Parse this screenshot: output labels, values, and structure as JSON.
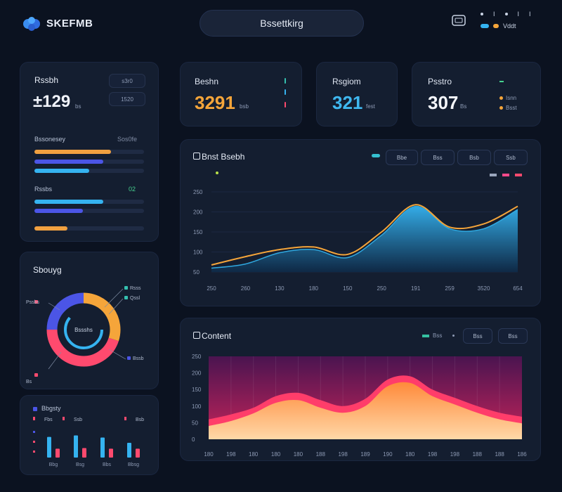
{
  "header": {
    "app_title": "SKEFMB",
    "search_label": "Bssettkirg",
    "top_right": [
      "I",
      "I",
      "I"
    ],
    "toggle_label": "Vddt"
  },
  "side_card_1": {
    "title": "Rssbh",
    "value": "±129",
    "value_unit": "bs",
    "box_1": "s3r0",
    "box_2": "1520",
    "group_1_label": "Bssonesey",
    "group_1_value": "Sos0fe",
    "group_2_label": "Rssbs",
    "group_2_value": "02",
    "bars": [
      {
        "group": 1,
        "fill": 0.7,
        "color": "#f0a040"
      },
      {
        "group": 1,
        "fill": 0.63,
        "color": "#4b55e6"
      },
      {
        "group": 1,
        "fill": 0.5,
        "color": "#35b3f0"
      },
      {
        "group": 2,
        "fill": 0.63,
        "color": "#35b3f0"
      },
      {
        "group": 2,
        "fill": 0.44,
        "color": "#4b55e6"
      },
      {
        "group": 2,
        "fill": 0.3,
        "color": "#f0a040"
      }
    ]
  },
  "stats": [
    {
      "title": "Beshn",
      "value": "3291",
      "sub": "bsb",
      "color": "#f5a53a"
    },
    {
      "title": "Rsgiom",
      "value": "321",
      "sub": "fest",
      "color": "#3fb8f0"
    },
    {
      "title": "Psstro",
      "value": "307",
      "sub": "Bs",
      "color": "#f4f6fb"
    }
  ],
  "stat_legend": [
    "Isnn",
    "Bsst"
  ],
  "main_chart": {
    "title": "Bnst Bsebh",
    "tabs": [
      "Bbe",
      "Bss",
      "Bsb",
      "Ssb"
    ],
    "legend": [
      "",
      "",
      ""
    ]
  },
  "donut_card": {
    "title": "Sbouyg",
    "center": "Bssshs",
    "labels": [
      "Pssbs",
      "Rsss",
      "Qssl",
      "Bssb",
      "Bs"
    ]
  },
  "bars_card": {
    "title": "Bbgsty",
    "labels": [
      "Fbs",
      "Ssb",
      "Bsb"
    ],
    "x_labels": [
      "Bbg",
      "Bsg",
      "Bbs",
      "Bbsg"
    ]
  },
  "content_chart": {
    "title": "Content",
    "legend_label": "Bss",
    "tab": "Bss",
    "tab2": "Bss"
  },
  "chart_data": [
    {
      "type": "area",
      "title": "Bnst Bsebh",
      "y_ticks": [
        "250",
        "200",
        "150",
        "100",
        "50"
      ],
      "categories": [
        "250",
        "260",
        "130",
        "180",
        "150",
        "250",
        "191",
        "259",
        "3520",
        "654"
      ],
      "series": [
        {
          "values": [
            12,
            25,
            60,
            70,
            45,
            115,
            205,
            135,
            135,
            195
          ],
          "color": "#2fa8e0"
        },
        {
          "values": [
            22,
            48,
            70,
            78,
            55,
            125,
            210,
            140,
            150,
            205
          ],
          "color": "#f5a53a"
        }
      ],
      "ylim": [
        0,
        250
      ]
    },
    {
      "type": "area",
      "title": "Content",
      "y_ticks": [
        "250",
        "200",
        "150",
        "100",
        "50",
        "0"
      ],
      "categories": [
        "180",
        "198",
        "180",
        "180",
        "180",
        "188",
        "198",
        "189",
        "190",
        "180",
        "198",
        "198",
        "188",
        "188",
        "186"
      ],
      "series": [
        {
          "values": [
            40,
            55,
            78,
            110,
            118,
            95,
            80,
            100,
            160,
            170,
            130,
            105,
            80,
            60,
            48
          ],
          "color": "#ff8a3a"
        },
        {
          "values": [
            60,
            75,
            95,
            130,
            140,
            118,
            100,
            122,
            180,
            190,
            150,
            125,
            100,
            80,
            68
          ],
          "color": "#ff3d6a"
        }
      ],
      "ylim": [
        0,
        250
      ]
    },
    {
      "type": "pie",
      "series": [
        {
          "name": "Pssbs",
          "values": [
            30
          ],
          "color": "#f5a53a"
        },
        {
          "name": "Rsss",
          "values": [
            45
          ],
          "color": "#ff4a6e"
        },
        {
          "name": "Qssl",
          "values": [
            25
          ],
          "color": "#4b55e6"
        }
      ]
    },
    {
      "type": "bar",
      "categories": [
        "Bbg",
        "Bsg",
        "Bbs",
        "Bbsg"
      ],
      "series": [
        {
          "values": [
            70,
            75,
            68,
            50
          ],
          "color": "#35b3f0"
        },
        {
          "values": [
            30,
            32,
            30,
            30
          ],
          "color": "#ff4a6e"
        }
      ],
      "ylim": [
        0,
        100
      ]
    }
  ]
}
